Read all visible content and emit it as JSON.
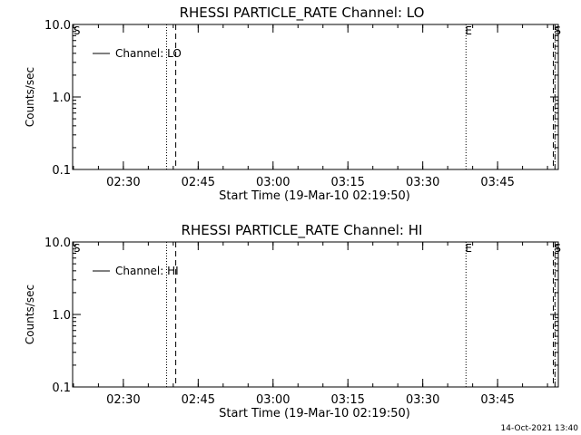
{
  "footer_timestamp": "14-Oct-2021 13:40",
  "chart_data": [
    {
      "type": "line",
      "title": "RHESSI PARTICLE_RATE Channel: LO",
      "xlabel": "Start Time (19-Mar-10 02:19:50)",
      "ylabel": "Counts/sec",
      "y_scale": "log",
      "ylim": [
        0.1,
        10.0
      ],
      "y_ticks": [
        "10.0",
        "1.0",
        "0.1"
      ],
      "xlim": [
        "02:19:50",
        "03:57:10"
      ],
      "x_ticks": [
        "02:30",
        "02:45",
        "03:00",
        "03:15",
        "03:30",
        "03:45"
      ],
      "grid": false,
      "legend": {
        "placement": "top-left",
        "entries": [
          "Channel: LO"
        ]
      },
      "series": [
        {
          "name": "Channel: LO",
          "values": []
        }
      ],
      "markers": [
        {
          "label": "S",
          "time": "02:20:10",
          "style": "none"
        },
        {
          "label": "",
          "time": "02:38:40",
          "style": "dotted"
        },
        {
          "label": "",
          "time": "02:40:30",
          "style": "dashed"
        },
        {
          "label": "E",
          "time": "03:38:40",
          "style": "dotted"
        },
        {
          "label": "",
          "time": "03:56:10",
          "style": "dashed"
        },
        {
          "label": "S",
          "time": "03:56:30",
          "style": "dashdot"
        }
      ]
    },
    {
      "type": "line",
      "title": "RHESSI PARTICLE_RATE Channel: HI",
      "xlabel": "Start Time (19-Mar-10 02:19:50)",
      "ylabel": "Counts/sec",
      "y_scale": "log",
      "ylim": [
        0.1,
        10.0
      ],
      "y_ticks": [
        "10.0",
        "1.0",
        "0.1"
      ],
      "xlim": [
        "02:19:50",
        "03:57:10"
      ],
      "x_ticks": [
        "02:30",
        "02:45",
        "03:00",
        "03:15",
        "03:30",
        "03:45"
      ],
      "grid": false,
      "legend": {
        "placement": "top-left",
        "entries": [
          "Channel: HI"
        ]
      },
      "series": [
        {
          "name": "Channel: HI",
          "values": []
        }
      ],
      "markers": [
        {
          "label": "S",
          "time": "02:20:10",
          "style": "none"
        },
        {
          "label": "",
          "time": "02:38:40",
          "style": "dotted"
        },
        {
          "label": "",
          "time": "02:40:30",
          "style": "dashed"
        },
        {
          "label": "E",
          "time": "03:38:40",
          "style": "dotted"
        },
        {
          "label": "",
          "time": "03:56:10",
          "style": "dashed"
        },
        {
          "label": "S",
          "time": "03:56:30",
          "style": "dashdot"
        }
      ]
    }
  ]
}
